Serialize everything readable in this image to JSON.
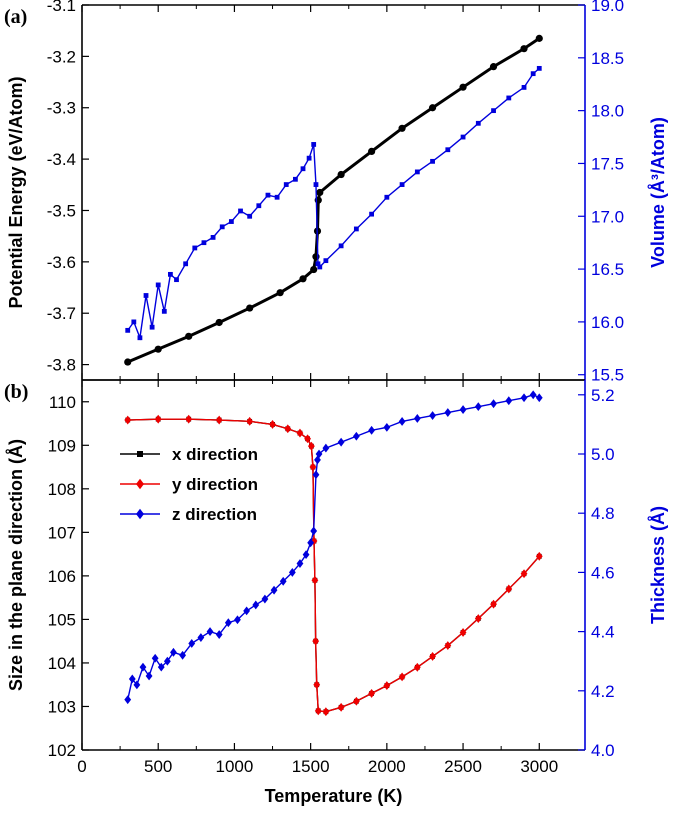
{
  "chart_data": [
    {
      "panel": "(a)",
      "type": "scatter",
      "xlabel": "",
      "xlim": [
        0,
        3300
      ],
      "xticks": [
        0,
        500,
        1000,
        1500,
        2000,
        2500,
        3000
      ],
      "left_axis": {
        "label": "Potential Energy (eV/Atom)",
        "ylim": [
          -3.83,
          -3.1
        ],
        "ticks": [
          -3.8,
          -3.7,
          -3.6,
          -3.5,
          -3.4,
          -3.3,
          -3.2,
          -3.1
        ],
        "tick_labels": [
          "-3.8",
          "-3.7",
          "-3.6",
          "-3.5",
          "-3.4",
          "-3.3",
          "-3.2",
          "-3.1"
        ]
      },
      "right_axis": {
        "label": "Volume (Å³/Atom)",
        "ylim": [
          15.45,
          19.0
        ],
        "ticks": [
          15.5,
          16.0,
          16.5,
          17.0,
          17.5,
          18.0,
          18.5,
          19.0
        ],
        "tick_labels": [
          "15.5",
          "16.0",
          "16.5",
          "17.0",
          "17.5",
          "18.0",
          "18.5",
          "19.0"
        ],
        "color": "#0000dd"
      },
      "series": [
        {
          "name": "Potential Energy",
          "axis": "left",
          "color": "#000000",
          "marker": "circle",
          "x": [
            300,
            500,
            700,
            900,
            1100,
            1300,
            1450,
            1520,
            1535,
            1545,
            1550,
            1560,
            1700,
            1900,
            2100,
            2300,
            2500,
            2700,
            2900,
            3000
          ],
          "y": [
            -3.795,
            -3.77,
            -3.745,
            -3.718,
            -3.69,
            -3.66,
            -3.633,
            -3.615,
            -3.59,
            -3.54,
            -3.48,
            -3.465,
            -3.43,
            -3.385,
            -3.34,
            -3.3,
            -3.26,
            -3.22,
            -3.185,
            -3.165
          ]
        },
        {
          "name": "Volume",
          "axis": "right",
          "color": "#0000dd",
          "marker": "square",
          "x": [
            300,
            340,
            380,
            420,
            460,
            500,
            540,
            580,
            620,
            680,
            740,
            800,
            860,
            920,
            980,
            1040,
            1100,
            1160,
            1220,
            1280,
            1340,
            1400,
            1450,
            1490,
            1520,
            1535,
            1548,
            1560,
            1600,
            1700,
            1800,
            1900,
            2000,
            2100,
            2200,
            2300,
            2400,
            2500,
            2600,
            2700,
            2800,
            2900,
            2960,
            3000
          ],
          "y": [
            15.92,
            16.0,
            15.85,
            16.25,
            15.95,
            16.35,
            16.1,
            16.45,
            16.4,
            16.55,
            16.7,
            16.75,
            16.8,
            16.9,
            16.95,
            17.05,
            17.0,
            17.1,
            17.2,
            17.18,
            17.3,
            17.35,
            17.45,
            17.55,
            17.68,
            17.3,
            16.55,
            16.52,
            16.58,
            16.72,
            16.88,
            17.02,
            17.18,
            17.3,
            17.42,
            17.52,
            17.63,
            17.75,
            17.88,
            18.0,
            18.12,
            18.22,
            18.35,
            18.4
          ]
        }
      ]
    },
    {
      "panel": "(b)",
      "type": "scatter",
      "xlabel": "Temperature (K)",
      "xlim": [
        0,
        3300
      ],
      "xticks": [
        0,
        500,
        1000,
        1500,
        2000,
        2500,
        3000
      ],
      "xtick_labels": [
        "0",
        "500",
        "1000",
        "1500",
        "2000",
        "2500",
        "3000"
      ],
      "left_axis": {
        "label": "Size in the plane direction (Å)",
        "ylim": [
          102,
          110.5
        ],
        "ticks": [
          102,
          103,
          104,
          105,
          106,
          107,
          108,
          109,
          110
        ],
        "tick_labels": [
          "102",
          "103",
          "104",
          "105",
          "106",
          "107",
          "108",
          "109",
          "110"
        ]
      },
      "right_axis": {
        "label": "Thickness (Å)",
        "ylim": [
          4.0,
          5.25
        ],
        "ticks": [
          4.0,
          4.2,
          4.4,
          4.6,
          4.8,
          5.0,
          5.2
        ],
        "tick_labels": [
          "4.0",
          "4.2",
          "4.4",
          "4.6",
          "4.8",
          "5.0",
          "5.2"
        ],
        "color": "#0000dd"
      },
      "legend": [
        "x direction",
        "y direction",
        "z direction"
      ],
      "series": [
        {
          "name": "x direction",
          "axis": "left",
          "color": "#000000",
          "marker": "square",
          "x": [
            300,
            500,
            700,
            900,
            1100,
            1250,
            1350,
            1430,
            1480,
            1505,
            1515,
            1522,
            1528,
            1533,
            1540,
            1550,
            1600,
            1700,
            1800,
            1900,
            2000,
            2100,
            2200,
            2300,
            2400,
            2500,
            2600,
            2700,
            2800,
            2900,
            3000
          ],
          "y": [
            109.58,
            109.6,
            109.6,
            109.58,
            109.55,
            109.48,
            109.38,
            109.28,
            109.15,
            108.98,
            108.5,
            106.8,
            105.9,
            104.5,
            103.5,
            102.9,
            102.88,
            102.98,
            103.12,
            103.3,
            103.48,
            103.68,
            103.9,
            104.15,
            104.4,
            104.7,
            105.02,
            105.35,
            105.7,
            106.05,
            106.45
          ]
        },
        {
          "name": "y direction",
          "axis": "left",
          "color": "#ee0000",
          "marker": "diamond",
          "x": [
            300,
            500,
            700,
            900,
            1100,
            1250,
            1350,
            1430,
            1480,
            1505,
            1515,
            1522,
            1528,
            1533,
            1540,
            1550,
            1600,
            1700,
            1800,
            1900,
            2000,
            2100,
            2200,
            2300,
            2400,
            2500,
            2600,
            2700,
            2800,
            2900,
            3000
          ],
          "y": [
            109.58,
            109.6,
            109.6,
            109.58,
            109.55,
            109.48,
            109.38,
            109.28,
            109.15,
            108.98,
            108.5,
            106.8,
            105.9,
            104.5,
            103.5,
            102.9,
            102.88,
            102.98,
            103.12,
            103.3,
            103.48,
            103.68,
            103.9,
            104.15,
            104.4,
            104.7,
            105.02,
            105.35,
            105.7,
            106.05,
            106.45
          ]
        },
        {
          "name": "z direction",
          "axis": "right",
          "color": "#0000dd",
          "marker": "diamond",
          "x": [
            300,
            330,
            360,
            400,
            440,
            480,
            520,
            560,
            600,
            660,
            720,
            780,
            840,
            900,
            960,
            1020,
            1080,
            1140,
            1200,
            1260,
            1320,
            1380,
            1430,
            1470,
            1500,
            1520,
            1535,
            1545,
            1555,
            1600,
            1700,
            1800,
            1900,
            2000,
            2100,
            2200,
            2300,
            2400,
            2500,
            2600,
            2700,
            2800,
            2900,
            2960,
            3000
          ],
          "y": [
            4.17,
            4.24,
            4.22,
            4.28,
            4.25,
            4.31,
            4.28,
            4.3,
            4.33,
            4.32,
            4.36,
            4.38,
            4.4,
            4.39,
            4.43,
            4.44,
            4.47,
            4.49,
            4.51,
            4.54,
            4.57,
            4.6,
            4.63,
            4.66,
            4.7,
            4.74,
            4.93,
            4.98,
            5.0,
            5.02,
            5.04,
            5.06,
            5.08,
            5.09,
            5.11,
            5.12,
            5.13,
            5.14,
            5.15,
            5.16,
            5.17,
            5.18,
            5.19,
            5.2,
            5.19
          ]
        }
      ]
    }
  ]
}
